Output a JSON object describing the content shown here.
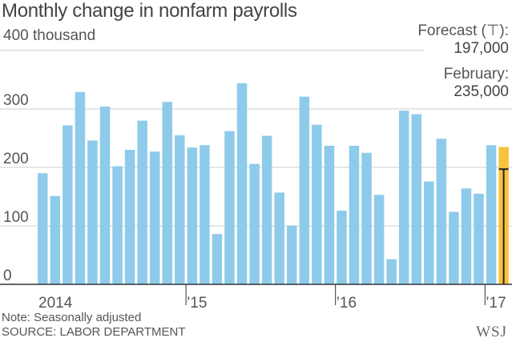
{
  "title": "Monthly change in nonfarm payrolls",
  "unit_label": "400 thousand",
  "forecast": {
    "label": "Forecast (⊤):",
    "value": "197,000"
  },
  "february": {
    "label": "February:",
    "value": "235,000"
  },
  "note": "Note: Seasonally adjusted",
  "source": "SOURCE: LABOR DEPARTMENT",
  "logo": "WSJ",
  "colors": {
    "bar": "#8ecbea",
    "highlight": "#f7c23c",
    "grid": "#cccccc",
    "axis": "#333333",
    "forecast_marker": "#222222"
  },
  "chart_data": {
    "type": "bar",
    "ylim": [
      0,
      400
    ],
    "yticks": [
      0,
      100,
      200,
      300
    ],
    "ytick_labels": [
      "0",
      "100",
      "200",
      "300"
    ],
    "xtick_labels": [
      {
        "index": 0,
        "label": "2014"
      },
      {
        "index": 12,
        "label": "’15"
      },
      {
        "index": 24,
        "label": "’16"
      },
      {
        "index": 36,
        "label": "’17"
      }
    ],
    "values": [
      190,
      151,
      272,
      329,
      246,
      304,
      202,
      230,
      280,
      227,
      312,
      255,
      234,
      238,
      86,
      262,
      344,
      206,
      254,
      157,
      100,
      321,
      273,
      237,
      126,
      237,
      225,
      153,
      43,
      297,
      291,
      176,
      249,
      124,
      164,
      155,
      238,
      235
    ],
    "highlight_index": 37,
    "forecast_value": 197
  }
}
